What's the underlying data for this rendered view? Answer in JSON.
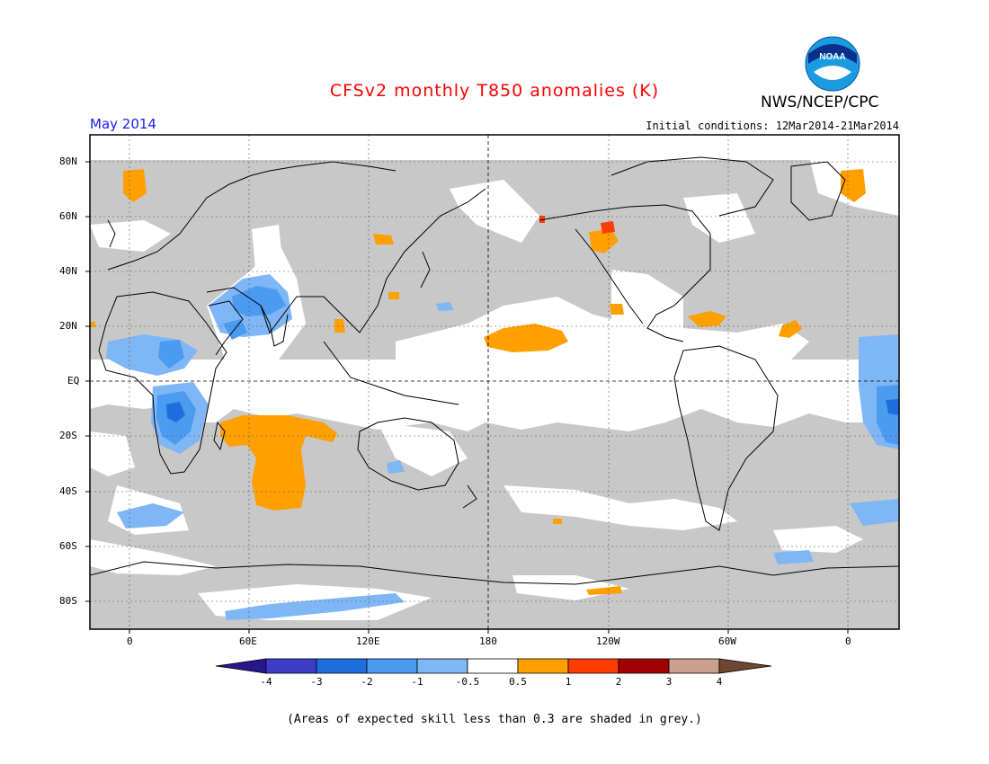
{
  "title": "CFSv2 monthly T850 anomalies (K)",
  "month": "May 2014",
  "initial_conditions": "Initial conditions: 12Mar2014-21Mar2014",
  "agency": "NWS/NCEP/CPC",
  "logo_text": "NOAA",
  "note": "(Areas of expected skill less than 0.3 are shaded in grey.)",
  "colors": {
    "title": "#ff0000",
    "month": "#1a1aff",
    "grey_mask": "#c8c8c8",
    "neg_05_1": "#7fb6f5",
    "neg_1_2": "#4c9bf0",
    "neg_2_3": "#1e6ee0",
    "neg_3_4": "#3c3cc8",
    "neg_4_plus": "#28168c",
    "pos_05_1": "#ff9f00",
    "pos_1_2": "#ff3c00",
    "pos_2_3": "#a00000",
    "pos_3_4": "#c8a08c",
    "pos_4_plus": "#6e4632"
  },
  "lat_labels": [
    "80N",
    "60N",
    "40N",
    "20N",
    "EQ",
    "20S",
    "40S",
    "60S",
    "80S"
  ],
  "lon_labels": [
    "0",
    "60E",
    "120E",
    "180",
    "120W",
    "60W",
    "0"
  ],
  "colorbar": {
    "labels": [
      "-4",
      "-3",
      "-2",
      "-1",
      "-0.5",
      "0.5",
      "1",
      "2",
      "3",
      "4"
    ],
    "colors": [
      "#28168c",
      "#3c3cc8",
      "#1e6ee0",
      "#4c9bf0",
      "#7fb6f5",
      "#ffffff",
      "#ff9f00",
      "#ff3c00",
      "#a00000",
      "#c8a08c",
      "#6e4632"
    ]
  }
}
